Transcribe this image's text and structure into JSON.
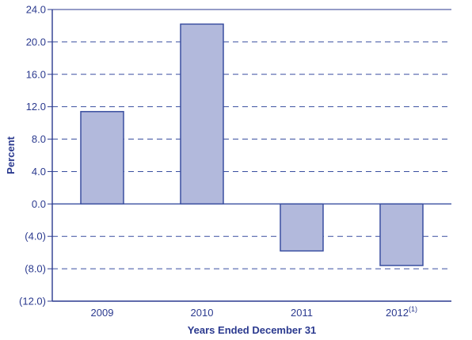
{
  "chart_data": {
    "type": "bar",
    "categories": [
      "2009",
      "2010",
      "2011",
      "2012"
    ],
    "category_superscripts": [
      "",
      "",
      "",
      "(1)"
    ],
    "values": [
      11.4,
      22.2,
      -5.8,
      -7.6
    ],
    "ylabel": "Percent",
    "xlabel": "Years Ended December 31",
    "ylim": [
      -12,
      24
    ],
    "yticks": [
      24,
      20,
      16,
      12,
      8,
      4,
      0,
      -4,
      -8,
      -12
    ],
    "ytick_labels": [
      "24.0",
      "20.0",
      "16.0",
      "12.0",
      "8.0",
      "4.0",
      "0.0",
      "(4.0)",
      "(8.0)",
      "(12.0)"
    ],
    "grid": "dashed horizontal",
    "colors": {
      "bar_fill": "#b2b9dc",
      "bar_stroke": "#3a4fa0",
      "axis": "#2b3a8f",
      "grid": "#3a4fa0",
      "text": "#2b3a8f"
    }
  }
}
